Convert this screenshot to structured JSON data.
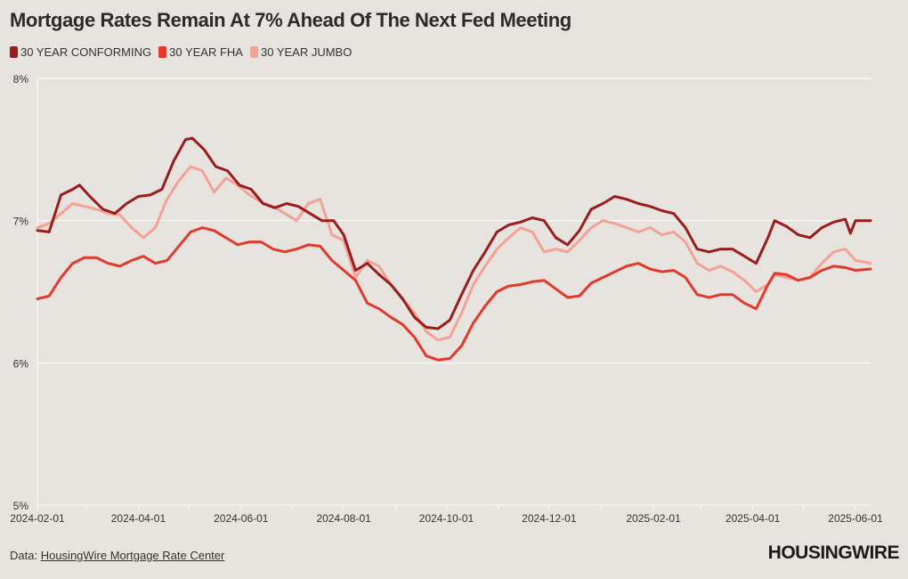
{
  "title": "Mortgage Rates Remain At 7% Ahead Of The Next Fed Meeting",
  "source_label": "Data:",
  "source_link": "HousingWire Mortgage Rate Center",
  "brand": "HOUSINGWIRE",
  "colors": {
    "background": "#e7e3df",
    "conforming": "#9b1c1c",
    "fha": "#e2392c",
    "jumbo": "#f5a196",
    "grid": "#ffffff"
  },
  "chart_data": {
    "type": "line",
    "title": "Mortgage Rates Remain At 7% Ahead Of The Next Fed Meeting",
    "xlabel": "",
    "ylabel": "",
    "xlim": [
      "2024-02-01",
      "2025-06-10"
    ],
    "ylim": [
      5,
      8
    ],
    "y_ticks": [
      "5%",
      "6%",
      "7%",
      "8%"
    ],
    "y_tick_values": [
      5,
      6,
      7,
      8
    ],
    "x_ticks": [
      "2024-02-01",
      "2024-04-01",
      "2024-06-01",
      "2024-08-01",
      "2024-10-01",
      "2024-12-01",
      "2025-02-01",
      "2025-04-01",
      "2025-06-01"
    ],
    "grid": "horizontal",
    "legend_position": "top-left",
    "series": [
      {
        "name": "30 YEAR CONFORMING",
        "color": "#9b1c1c",
        "points": [
          [
            "2024-02-01",
            6.93
          ],
          [
            "2024-02-08",
            6.92
          ],
          [
            "2024-02-15",
            7.18
          ],
          [
            "2024-02-22",
            7.22
          ],
          [
            "2024-02-26",
            7.25
          ],
          [
            "2024-03-04",
            7.16
          ],
          [
            "2024-03-11",
            7.08
          ],
          [
            "2024-03-18",
            7.05
          ],
          [
            "2024-03-25",
            7.12
          ],
          [
            "2024-04-01",
            7.17
          ],
          [
            "2024-04-08",
            7.18
          ],
          [
            "2024-04-15",
            7.22
          ],
          [
            "2024-04-22",
            7.42
          ],
          [
            "2024-04-29",
            7.57
          ],
          [
            "2024-05-03",
            7.58
          ],
          [
            "2024-05-10",
            7.5
          ],
          [
            "2024-05-17",
            7.38
          ],
          [
            "2024-05-24",
            7.35
          ],
          [
            "2024-05-31",
            7.25
          ],
          [
            "2024-06-07",
            7.22
          ],
          [
            "2024-06-14",
            7.12
          ],
          [
            "2024-06-21",
            7.09
          ],
          [
            "2024-06-28",
            7.12
          ],
          [
            "2024-07-05",
            7.1
          ],
          [
            "2024-07-12",
            7.05
          ],
          [
            "2024-07-19",
            7.0
          ],
          [
            "2024-07-26",
            7.0
          ],
          [
            "2024-08-01",
            6.9
          ],
          [
            "2024-08-08",
            6.65
          ],
          [
            "2024-08-15",
            6.7
          ],
          [
            "2024-08-22",
            6.62
          ],
          [
            "2024-08-29",
            6.55
          ],
          [
            "2024-09-05",
            6.45
          ],
          [
            "2024-09-12",
            6.32
          ],
          [
            "2024-09-19",
            6.25
          ],
          [
            "2024-09-26",
            6.24
          ],
          [
            "2024-10-03",
            6.3
          ],
          [
            "2024-10-10",
            6.48
          ],
          [
            "2024-10-17",
            6.65
          ],
          [
            "2024-10-24",
            6.78
          ],
          [
            "2024-10-31",
            6.92
          ],
          [
            "2024-11-07",
            6.97
          ],
          [
            "2024-11-14",
            6.99
          ],
          [
            "2024-11-21",
            7.02
          ],
          [
            "2024-11-28",
            7.0
          ],
          [
            "2024-12-05",
            6.88
          ],
          [
            "2024-12-12",
            6.83
          ],
          [
            "2024-12-19",
            6.93
          ],
          [
            "2024-12-26",
            7.08
          ],
          [
            "2025-01-02",
            7.12
          ],
          [
            "2025-01-09",
            7.17
          ],
          [
            "2025-01-16",
            7.15
          ],
          [
            "2025-01-23",
            7.12
          ],
          [
            "2025-01-30",
            7.1
          ],
          [
            "2025-02-06",
            7.07
          ],
          [
            "2025-02-13",
            7.05
          ],
          [
            "2025-02-20",
            6.95
          ],
          [
            "2025-02-27",
            6.8
          ],
          [
            "2025-03-06",
            6.78
          ],
          [
            "2025-03-13",
            6.8
          ],
          [
            "2025-03-20",
            6.8
          ],
          [
            "2025-03-27",
            6.75
          ],
          [
            "2025-04-03",
            6.7
          ],
          [
            "2025-04-10",
            6.88
          ],
          [
            "2025-04-14",
            7.0
          ],
          [
            "2025-04-21",
            6.96
          ],
          [
            "2025-04-28",
            6.9
          ],
          [
            "2025-05-05",
            6.88
          ],
          [
            "2025-05-12",
            6.95
          ],
          [
            "2025-05-19",
            6.99
          ],
          [
            "2025-05-26",
            7.01
          ],
          [
            "2025-05-29",
            6.91
          ],
          [
            "2025-06-01",
            7.0
          ],
          [
            "2025-06-10",
            7.0
          ]
        ]
      },
      {
        "name": "30 YEAR FHA",
        "color": "#e2392c",
        "points": [
          [
            "2024-02-01",
            6.45
          ],
          [
            "2024-02-08",
            6.47
          ],
          [
            "2024-02-15",
            6.6
          ],
          [
            "2024-02-22",
            6.7
          ],
          [
            "2024-02-29",
            6.74
          ],
          [
            "2024-03-07",
            6.74
          ],
          [
            "2024-03-14",
            6.7
          ],
          [
            "2024-03-21",
            6.68
          ],
          [
            "2024-03-28",
            6.72
          ],
          [
            "2024-04-04",
            6.75
          ],
          [
            "2024-04-11",
            6.7
          ],
          [
            "2024-04-18",
            6.72
          ],
          [
            "2024-04-25",
            6.82
          ],
          [
            "2024-05-02",
            6.92
          ],
          [
            "2024-05-09",
            6.95
          ],
          [
            "2024-05-16",
            6.93
          ],
          [
            "2024-05-23",
            6.88
          ],
          [
            "2024-05-30",
            6.83
          ],
          [
            "2024-06-06",
            6.85
          ],
          [
            "2024-06-13",
            6.85
          ],
          [
            "2024-06-20",
            6.8
          ],
          [
            "2024-06-27",
            6.78
          ],
          [
            "2024-07-04",
            6.8
          ],
          [
            "2024-07-11",
            6.83
          ],
          [
            "2024-07-18",
            6.82
          ],
          [
            "2024-07-25",
            6.72
          ],
          [
            "2024-08-01",
            6.65
          ],
          [
            "2024-08-08",
            6.58
          ],
          [
            "2024-08-15",
            6.42
          ],
          [
            "2024-08-22",
            6.38
          ],
          [
            "2024-08-29",
            6.32
          ],
          [
            "2024-09-05",
            6.27
          ],
          [
            "2024-09-12",
            6.18
          ],
          [
            "2024-09-19",
            6.05
          ],
          [
            "2024-09-26",
            6.02
          ],
          [
            "2024-10-03",
            6.03
          ],
          [
            "2024-10-10",
            6.12
          ],
          [
            "2024-10-17",
            6.28
          ],
          [
            "2024-10-24",
            6.4
          ],
          [
            "2024-10-31",
            6.5
          ],
          [
            "2024-11-07",
            6.54
          ],
          [
            "2024-11-14",
            6.55
          ],
          [
            "2024-11-21",
            6.57
          ],
          [
            "2024-11-28",
            6.58
          ],
          [
            "2024-12-05",
            6.52
          ],
          [
            "2024-12-12",
            6.46
          ],
          [
            "2024-12-19",
            6.47
          ],
          [
            "2024-12-26",
            6.56
          ],
          [
            "2025-01-02",
            6.6
          ],
          [
            "2025-01-09",
            6.64
          ],
          [
            "2025-01-16",
            6.68
          ],
          [
            "2025-01-23",
            6.7
          ],
          [
            "2025-01-30",
            6.66
          ],
          [
            "2025-02-06",
            6.64
          ],
          [
            "2025-02-13",
            6.65
          ],
          [
            "2025-02-20",
            6.6
          ],
          [
            "2025-02-27",
            6.48
          ],
          [
            "2025-03-06",
            6.46
          ],
          [
            "2025-03-13",
            6.48
          ],
          [
            "2025-03-20",
            6.48
          ],
          [
            "2025-03-27",
            6.42
          ],
          [
            "2025-04-03",
            6.38
          ],
          [
            "2025-04-10",
            6.55
          ],
          [
            "2025-04-14",
            6.63
          ],
          [
            "2025-04-21",
            6.62
          ],
          [
            "2025-04-28",
            6.58
          ],
          [
            "2025-05-05",
            6.6
          ],
          [
            "2025-05-12",
            6.65
          ],
          [
            "2025-05-19",
            6.68
          ],
          [
            "2025-05-26",
            6.67
          ],
          [
            "2025-06-01",
            6.65
          ],
          [
            "2025-06-10",
            6.66
          ]
        ]
      },
      {
        "name": "30 YEAR JUMBO",
        "color": "#f5a196",
        "points": [
          [
            "2024-02-01",
            6.95
          ],
          [
            "2024-02-08",
            6.98
          ],
          [
            "2024-02-15",
            7.05
          ],
          [
            "2024-02-22",
            7.12
          ],
          [
            "2024-02-29",
            7.1
          ],
          [
            "2024-03-07",
            7.08
          ],
          [
            "2024-03-14",
            7.05
          ],
          [
            "2024-03-21",
            7.04
          ],
          [
            "2024-03-28",
            6.95
          ],
          [
            "2024-04-04",
            6.88
          ],
          [
            "2024-04-11",
            6.95
          ],
          [
            "2024-04-18",
            7.15
          ],
          [
            "2024-04-25",
            7.28
          ],
          [
            "2024-05-02",
            7.38
          ],
          [
            "2024-05-09",
            7.35
          ],
          [
            "2024-05-16",
            7.2
          ],
          [
            "2024-05-23",
            7.3
          ],
          [
            "2024-05-30",
            7.25
          ],
          [
            "2024-06-06",
            7.18
          ],
          [
            "2024-06-13",
            7.13
          ],
          [
            "2024-06-20",
            7.1
          ],
          [
            "2024-06-27",
            7.05
          ],
          [
            "2024-07-04",
            7.0
          ],
          [
            "2024-07-11",
            7.12
          ],
          [
            "2024-07-18",
            7.15
          ],
          [
            "2024-07-25",
            6.9
          ],
          [
            "2024-08-01",
            6.86
          ],
          [
            "2024-08-08",
            6.6
          ],
          [
            "2024-08-15",
            6.72
          ],
          [
            "2024-08-22",
            6.68
          ],
          [
            "2024-08-29",
            6.55
          ],
          [
            "2024-09-05",
            6.45
          ],
          [
            "2024-09-12",
            6.35
          ],
          [
            "2024-09-19",
            6.22
          ],
          [
            "2024-09-26",
            6.16
          ],
          [
            "2024-10-03",
            6.18
          ],
          [
            "2024-10-10",
            6.35
          ],
          [
            "2024-10-17",
            6.55
          ],
          [
            "2024-10-24",
            6.68
          ],
          [
            "2024-10-31",
            6.8
          ],
          [
            "2024-11-07",
            6.88
          ],
          [
            "2024-11-14",
            6.95
          ],
          [
            "2024-11-21",
            6.92
          ],
          [
            "2024-11-28",
            6.78
          ],
          [
            "2024-12-05",
            6.8
          ],
          [
            "2024-12-12",
            6.78
          ],
          [
            "2024-12-19",
            6.86
          ],
          [
            "2024-12-26",
            6.95
          ],
          [
            "2025-01-02",
            7.0
          ],
          [
            "2025-01-09",
            6.98
          ],
          [
            "2025-01-16",
            6.95
          ],
          [
            "2025-01-23",
            6.92
          ],
          [
            "2025-01-30",
            6.95
          ],
          [
            "2025-02-06",
            6.9
          ],
          [
            "2025-02-13",
            6.92
          ],
          [
            "2025-02-20",
            6.85
          ],
          [
            "2025-02-27",
            6.7
          ],
          [
            "2025-03-06",
            6.65
          ],
          [
            "2025-03-13",
            6.68
          ],
          [
            "2025-03-20",
            6.64
          ],
          [
            "2025-03-27",
            6.58
          ],
          [
            "2025-04-03",
            6.5
          ],
          [
            "2025-04-10",
            6.55
          ],
          [
            "2025-04-14",
            6.62
          ],
          [
            "2025-04-21",
            6.6
          ],
          [
            "2025-04-28",
            6.58
          ],
          [
            "2025-05-05",
            6.6
          ],
          [
            "2025-05-12",
            6.7
          ],
          [
            "2025-05-19",
            6.78
          ],
          [
            "2025-05-26",
            6.8
          ],
          [
            "2025-06-01",
            6.72
          ],
          [
            "2025-06-10",
            6.7
          ]
        ]
      }
    ]
  }
}
